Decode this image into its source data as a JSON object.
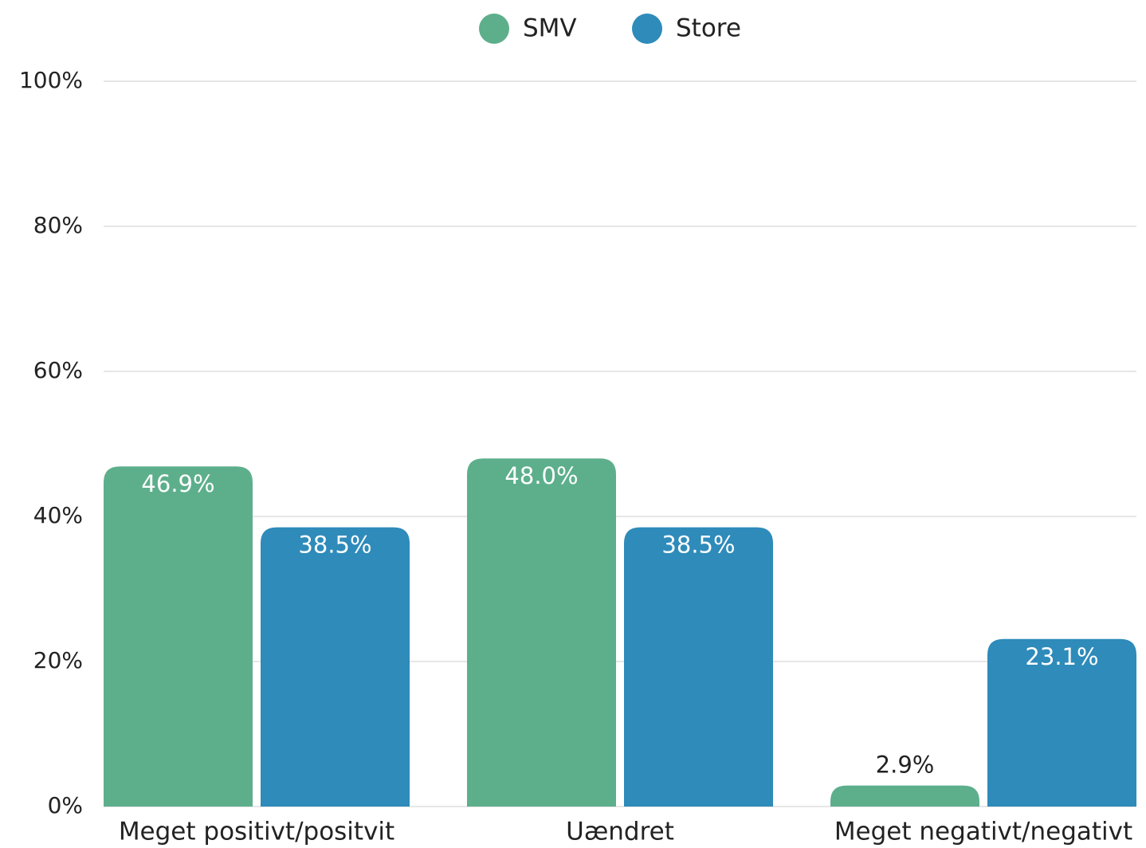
{
  "chart_data": {
    "type": "bar",
    "categories": [
      "Meget positivt/positvit",
      "Uændret",
      "Meget negativt/negativt"
    ],
    "series": [
      {
        "name": "SMV",
        "color": "#5daf8c",
        "values": [
          46.9,
          48.0,
          2.9
        ],
        "value_labels": [
          "46.9%",
          "48.0%",
          "2.9%"
        ]
      },
      {
        "name": "Store",
        "color": "#2e8bba",
        "values": [
          38.5,
          38.5,
          23.1
        ],
        "value_labels": [
          "38.5%",
          "38.5%",
          "23.1%"
        ]
      }
    ],
    "ylim": [
      0,
      100
    ],
    "yticks": [
      {
        "value": 0,
        "label": "0%"
      },
      {
        "value": 20,
        "label": "20%"
      },
      {
        "value": 40,
        "label": "40%"
      },
      {
        "value": 60,
        "label": "60%"
      },
      {
        "value": 80,
        "label": "80%"
      },
      {
        "value": 100,
        "label": "100%"
      }
    ],
    "grid": true,
    "legend": "top"
  }
}
